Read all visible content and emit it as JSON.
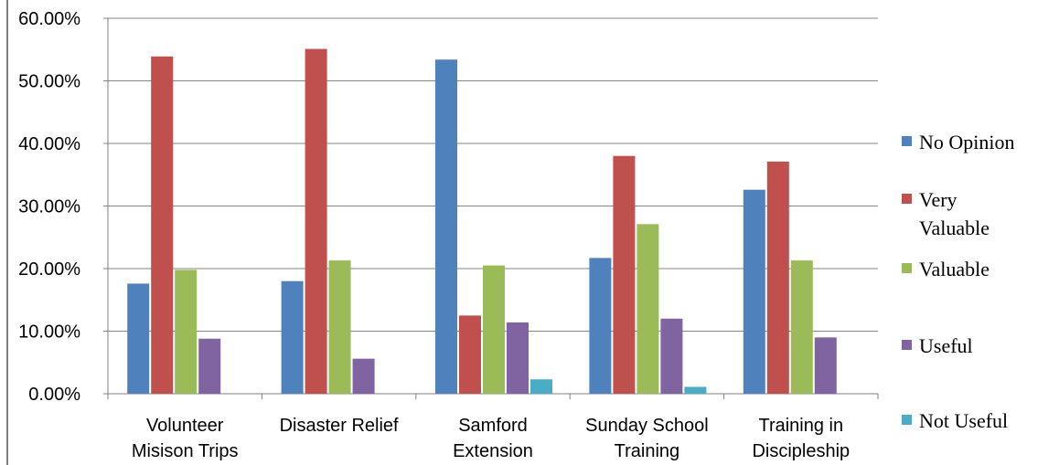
{
  "chart_data": {
    "type": "bar",
    "categories": [
      [
        "Volunteer",
        "Misison Trips"
      ],
      [
        "Disaster Relief"
      ],
      [
        "Samford",
        "Extension"
      ],
      [
        "Sunday School",
        "Training"
      ],
      [
        "Training in",
        "Discipleship"
      ]
    ],
    "series": [
      {
        "name": "No Opinion",
        "color": "#4F81BD",
        "values": [
          17.6,
          18.0,
          53.4,
          21.7,
          32.6
        ]
      },
      {
        "name": "Very Valuable",
        "color": "#C0504D",
        "values": [
          53.9,
          55.1,
          12.5,
          38.0,
          37.1
        ]
      },
      {
        "name": "Valuable",
        "color": "#9BBB59",
        "values": [
          19.8,
          21.3,
          20.5,
          27.1,
          21.3
        ]
      },
      {
        "name": "Useful",
        "color": "#8064A2",
        "values": [
          8.8,
          5.6,
          11.4,
          12.0,
          9.0
        ]
      },
      {
        "name": "Not Useful",
        "color": "#4BACC6",
        "values": [
          0,
          0,
          2.3,
          1.1,
          0
        ]
      }
    ],
    "legend_lines": [
      [
        "No Opinion"
      ],
      [
        "Very",
        "Valuable"
      ],
      [
        "Valuable"
      ],
      [
        "Useful"
      ],
      [
        "Not Useful"
      ]
    ],
    "yticks": [
      "0.00%",
      "10.00%",
      "20.00%",
      "30.00%",
      "40.00%",
      "50.00%",
      "60.00%"
    ],
    "ylim": [
      0,
      60
    ],
    "grid": true,
    "legend_position": "right",
    "title": "",
    "xlabel": "",
    "ylabel": ""
  }
}
